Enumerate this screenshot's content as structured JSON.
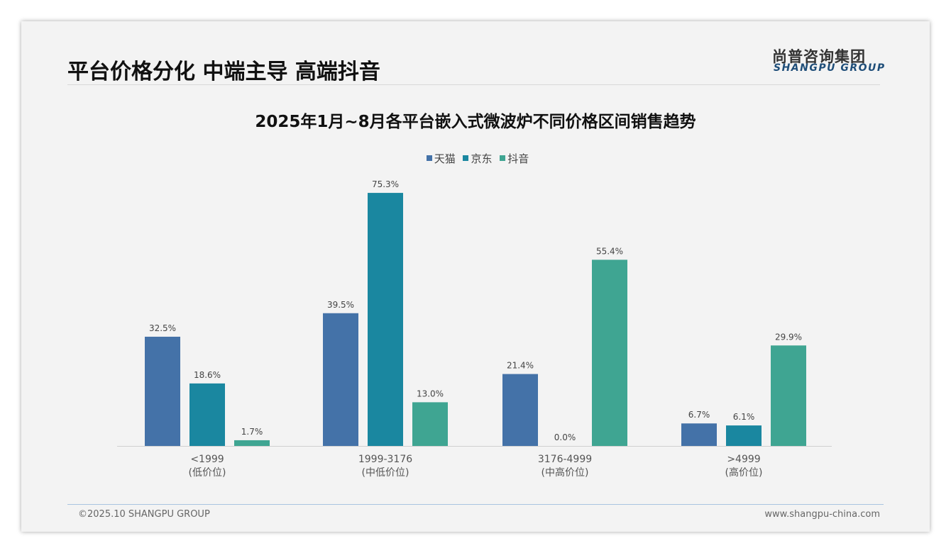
{
  "header": {
    "title": "平台价格分化 中端主导 高端抖音",
    "logo_cn": "尚普咨询集团",
    "logo_en": "SHANGPU GROUP"
  },
  "footer": {
    "copyright": "©2025.10 SHANGPU GROUP",
    "website": "www.shangpu-china.com"
  },
  "colors": {
    "天猫": "#4472a8",
    "京东": "#1a87a0",
    "抖音": "#3fa592"
  },
  "chart_data": {
    "type": "bar",
    "title": "2025年1月~8月各平台嵌入式微波炉不同价格区间销售趋势",
    "categories": [
      "<1999",
      "1999-3176",
      "3176-4999",
      ">4999"
    ],
    "category_sublabels": [
      "(低价位)",
      "(中低价位)",
      "(中高价位)",
      "(高价位)"
    ],
    "series": [
      {
        "name": "天猫",
        "values": [
          32.5,
          39.5,
          21.4,
          6.7
        ]
      },
      {
        "name": "京东",
        "values": [
          18.6,
          75.3,
          0.0,
          6.1
        ]
      },
      {
        "name": "抖音",
        "values": [
          1.7,
          13.0,
          55.4,
          29.9
        ]
      }
    ],
    "unit": "%",
    "legend": "top-center",
    "grid": false,
    "ylim": [
      0,
      80
    ]
  }
}
